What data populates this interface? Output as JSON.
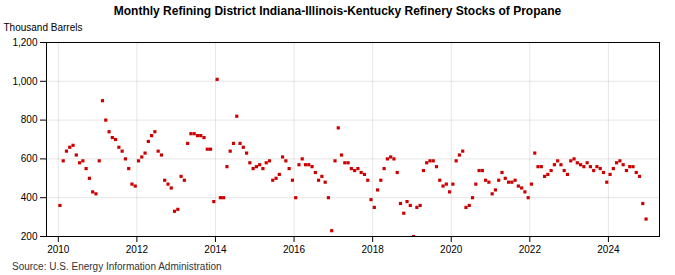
{
  "chart_data": {
    "type": "scatter",
    "title": "Monthly Refining District Indiana-Illinois-Kentucky Refinery Stocks of Propane",
    "ylabel": "Thousand Barrels",
    "source": "Source: U.S. Energy Information Administration",
    "color": "#cc0000",
    "marker": "square",
    "grid": true,
    "xlim": [
      2009.7,
      2025.3
    ],
    "xticks": [
      2010,
      2012,
      2014,
      2016,
      2018,
      2020,
      2022,
      2024
    ],
    "ylim": [
      200,
      1200
    ],
    "yticks": [
      200,
      400,
      600,
      800,
      {
        "value": 1000,
        "label": "1,000"
      },
      {
        "value": 1200,
        "label": "1,200"
      }
    ],
    "x": [
      2010.042,
      2010.125,
      2010.208,
      2010.292,
      2010.375,
      2010.458,
      2010.542,
      2010.625,
      2010.708,
      2010.792,
      2010.875,
      2010.958,
      2011.042,
      2011.125,
      2011.208,
      2011.292,
      2011.375,
      2011.458,
      2011.542,
      2011.625,
      2011.708,
      2011.792,
      2011.875,
      2011.958,
      2012.042,
      2012.125,
      2012.208,
      2012.292,
      2012.375,
      2012.458,
      2012.542,
      2012.625,
      2012.708,
      2012.792,
      2012.875,
      2012.958,
      2013.042,
      2013.125,
      2013.208,
      2013.292,
      2013.375,
      2013.458,
      2013.542,
      2013.625,
      2013.708,
      2013.792,
      2013.875,
      2013.958,
      2014.042,
      2014.125,
      2014.208,
      2014.292,
      2014.375,
      2014.458,
      2014.542,
      2014.625,
      2014.708,
      2014.792,
      2014.875,
      2014.958,
      2015.042,
      2015.125,
      2015.208,
      2015.292,
      2015.375,
      2015.458,
      2015.542,
      2015.625,
      2015.708,
      2015.792,
      2015.875,
      2015.958,
      2016.042,
      2016.125,
      2016.208,
      2016.292,
      2016.375,
      2016.458,
      2016.542,
      2016.625,
      2016.708,
      2016.792,
      2016.875,
      2016.958,
      2017.042,
      2017.125,
      2017.208,
      2017.292,
      2017.375,
      2017.458,
      2017.542,
      2017.625,
      2017.708,
      2017.792,
      2017.875,
      2017.958,
      2018.042,
      2018.125,
      2018.208,
      2018.292,
      2018.375,
      2018.458,
      2018.542,
      2018.625,
      2018.708,
      2018.792,
      2018.875,
      2018.958,
      2019.042,
      2019.125,
      2019.208,
      2019.292,
      2019.375,
      2019.458,
      2019.542,
      2019.625,
      2019.708,
      2019.792,
      2019.875,
      2019.958,
      2020.042,
      2020.125,
      2020.208,
      2020.292,
      2020.375,
      2020.458,
      2020.542,
      2020.625,
      2020.708,
      2020.792,
      2020.875,
      2020.958,
      2021.042,
      2021.125,
      2021.208,
      2021.292,
      2021.375,
      2021.458,
      2021.542,
      2021.625,
      2021.708,
      2021.792,
      2021.875,
      2021.958,
      2022.042,
      2022.125,
      2022.208,
      2022.292,
      2022.375,
      2022.458,
      2022.542,
      2022.625,
      2022.708,
      2022.792,
      2022.875,
      2022.958,
      2023.042,
      2023.125,
      2023.208,
      2023.292,
      2023.375,
      2023.458,
      2023.542,
      2023.625,
      2023.708,
      2023.792,
      2023.875,
      2023.958,
      2024.042,
      2024.125,
      2024.208,
      2024.292,
      2024.375,
      2024.458,
      2024.542,
      2024.625,
      2024.708,
      2024.792,
      2024.875,
      2024.958
    ],
    "values": [
      360,
      590,
      640,
      660,
      670,
      620,
      580,
      590,
      550,
      500,
      430,
      420,
      590,
      900,
      800,
      740,
      710,
      700,
      660,
      640,
      600,
      550,
      470,
      460,
      590,
      610,
      630,
      690,
      720,
      740,
      640,
      620,
      490,
      470,
      450,
      330,
      340,
      510,
      490,
      680,
      730,
      730,
      720,
      720,
      710,
      650,
      650,
      380,
      1010,
      400,
      400,
      560,
      640,
      680,
      820,
      680,
      660,
      630,
      580,
      550,
      560,
      570,
      550,
      580,
      590,
      490,
      500,
      520,
      610,
      590,
      550,
      490,
      400,
      570,
      600,
      570,
      570,
      560,
      530,
      490,
      510,
      480,
      400,
      230,
      590,
      760,
      620,
      580,
      580,
      550,
      540,
      550,
      530,
      520,
      490,
      390,
      350,
      440,
      490,
      550,
      600,
      610,
      600,
      530,
      370,
      320,
      380,
      360,
      200,
      350,
      360,
      540,
      580,
      590,
      590,
      560,
      490,
      460,
      470,
      430,
      470,
      590,
      620,
      640,
      350,
      360,
      400,
      470,
      540,
      540,
      490,
      480,
      420,
      440,
      490,
      530,
      500,
      480,
      480,
      490,
      460,
      450,
      430,
      400,
      470,
      630,
      560,
      560,
      510,
      520,
      540,
      570,
      590,
      570,
      540,
      520,
      590,
      600,
      580,
      570,
      560,
      580,
      560,
      540,
      560,
      550,
      530,
      480,
      520,
      550,
      580,
      590,
      570,
      540,
      560,
      560,
      530,
      510,
      370,
      290
    ]
  }
}
